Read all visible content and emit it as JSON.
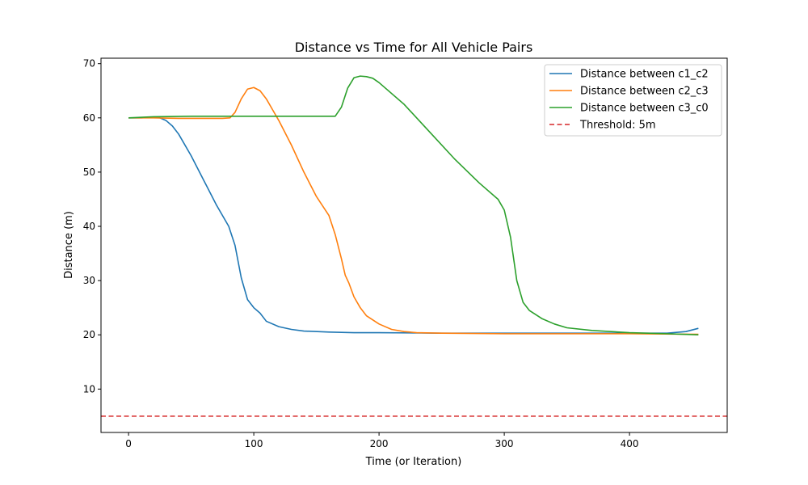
{
  "chart_data": {
    "type": "line",
    "title": "Distance vs Time for All Vehicle Pairs",
    "xlabel": "Time (or Iteration)",
    "ylabel": "Distance (m)",
    "xlim": [
      -22,
      478
    ],
    "ylim": [
      2,
      71
    ],
    "xticks": [
      0,
      100,
      200,
      300,
      400
    ],
    "yticks": [
      10,
      20,
      30,
      40,
      50,
      60,
      70
    ],
    "grid": false,
    "legend": "top-right",
    "series": [
      {
        "name": "Distance between c1_c2",
        "color": "#1f77b4",
        "style": "solid",
        "x": [
          0,
          10,
          20,
          25,
          30,
          35,
          40,
          50,
          60,
          70,
          80,
          85,
          90,
          95,
          100,
          105,
          110,
          120,
          130,
          140,
          160,
          180,
          200,
          250,
          300,
          350,
          400,
          430,
          445,
          455
        ],
        "y": [
          60,
          60,
          60.1,
          60,
          59.5,
          58.5,
          57,
          53,
          48.5,
          44,
          40,
          36.5,
          30.5,
          26.5,
          25,
          24,
          22.5,
          21.5,
          21,
          20.7,
          20.5,
          20.4,
          20.4,
          20.3,
          20.3,
          20.3,
          20.3,
          20.3,
          20.6,
          21.2
        ]
      },
      {
        "name": "Distance between c2_c3",
        "color": "#ff7f0e",
        "style": "solid",
        "x": [
          0,
          20,
          40,
          60,
          75,
          81,
          85,
          90,
          95,
          100,
          105,
          110,
          115,
          120,
          130,
          140,
          150,
          160,
          165,
          170,
          173,
          176,
          180,
          185,
          190,
          200,
          210,
          220,
          230,
          250,
          300,
          350,
          400,
          455
        ],
        "y": [
          60,
          60,
          59.9,
          59.9,
          59.9,
          60,
          61,
          63.5,
          65.3,
          65.6,
          65,
          63.5,
          61.5,
          59.5,
          55,
          50,
          45.5,
          42,
          38.5,
          34,
          31,
          29.5,
          27,
          25,
          23.5,
          22,
          21,
          20.6,
          20.4,
          20.3,
          20.2,
          20.2,
          20.2,
          20.1
        ]
      },
      {
        "name": "Distance between c3_c0",
        "color": "#2ca02c",
        "style": "solid",
        "x": [
          0,
          20,
          50,
          100,
          150,
          165,
          170,
          175,
          180,
          185,
          190,
          195,
          200,
          220,
          240,
          260,
          280,
          295,
          300,
          305,
          310,
          315,
          320,
          330,
          340,
          350,
          370,
          400,
          430,
          455
        ],
        "y": [
          60,
          60.2,
          60.3,
          60.3,
          60.3,
          60.3,
          62,
          65.5,
          67.4,
          67.7,
          67.6,
          67.3,
          66.5,
          62.5,
          57.5,
          52.5,
          48,
          45,
          43,
          38,
          30,
          26,
          24.5,
          23,
          22,
          21.3,
          20.8,
          20.4,
          20.2,
          20
        ]
      },
      {
        "name": "Threshold: 5m",
        "color": "#d62728",
        "style": "dashed",
        "x": [
          -22,
          478
        ],
        "y": [
          5,
          5
        ]
      }
    ]
  }
}
